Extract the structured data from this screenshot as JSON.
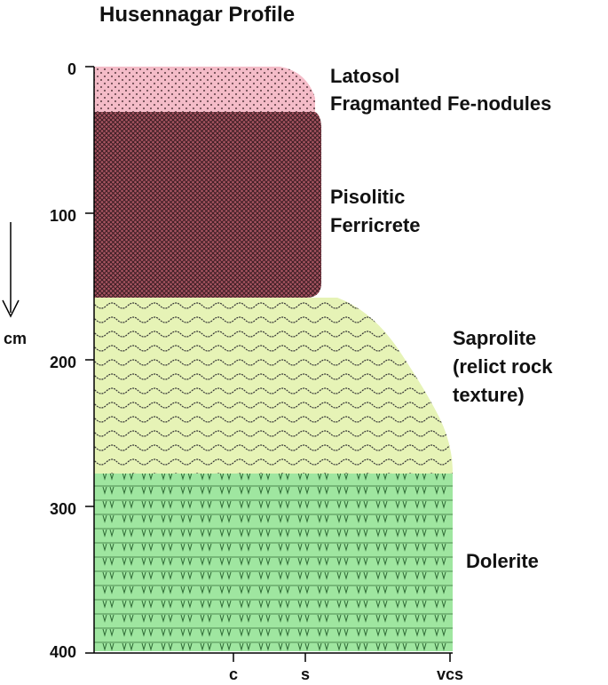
{
  "title": "Husennagar Profile",
  "depth_axis": {
    "unit_label": "cm",
    "ticks": [
      "0",
      "100",
      "200",
      "300",
      "400"
    ],
    "direction_icon": "down-arrow-icon"
  },
  "grain_axis": {
    "ticks": [
      "c",
      "s",
      "vcs"
    ]
  },
  "layers": [
    {
      "id": "latosol",
      "label_lines": [
        "Latosol",
        "Fragmanted Fe-nodules"
      ],
      "fill": "#f4bcc8",
      "pattern": "dots"
    },
    {
      "id": "ferricrete",
      "label_lines": [
        "Pisolitic",
        "Ferricrete"
      ],
      "fill": "#a85562",
      "pattern": "crosshatch"
    },
    {
      "id": "saprolite",
      "label_lines": [
        "Saprolite",
        "(relict rock",
        "texture)"
      ],
      "fill": "#e6f3b6",
      "pattern": "waves"
    },
    {
      "id": "dolerite",
      "label_lines": [
        "Dolerite"
      ],
      "fill": "#9fe6a0",
      "pattern": "v-marks"
    }
  ]
}
